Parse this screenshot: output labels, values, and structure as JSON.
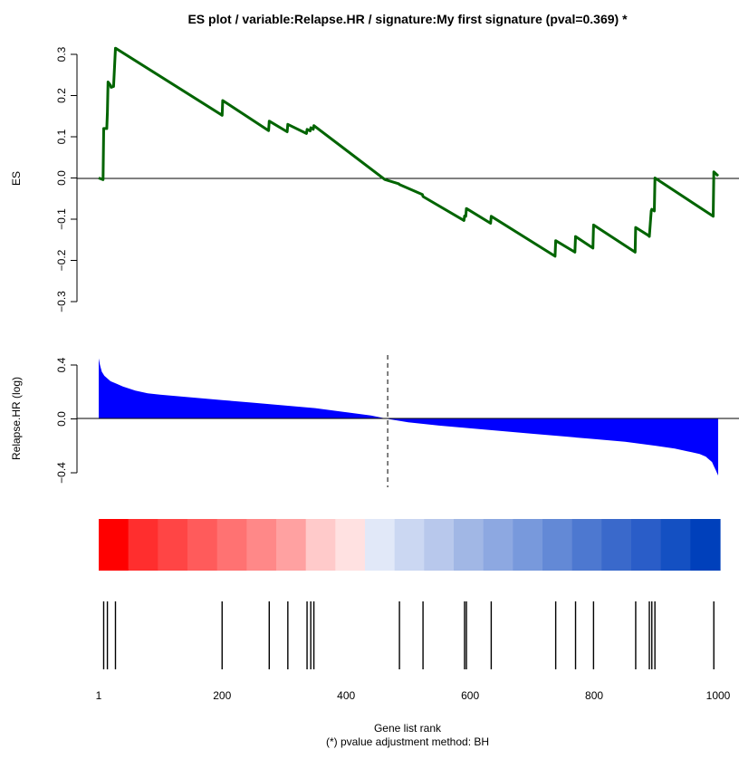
{
  "chart_data": [
    {
      "type": "line",
      "title": "ES  plot /  variable:Relapse.HR / signature:My first signature (pval=0.369) *",
      "xlabel": "",
      "ylabel": "ES",
      "ylim": [
        -0.3,
        0.3
      ],
      "yticks": [
        -0.3,
        -0.2,
        -0.1,
        0.0,
        0.1,
        0.2,
        0.3
      ],
      "ytick_labels": [
        "−0.3",
        "−0.2",
        "−0.1",
        "0.0",
        "0.1",
        "0.2",
        "0.3"
      ],
      "line_color": "#006400",
      "grid": false,
      "series": [
        {
          "x": [
            1,
            8,
            9,
            14,
            15,
            16,
            20,
            21,
            25,
            28,
            200,
            201,
            275,
            276,
            305,
            306,
            336,
            337,
            342,
            343,
            347,
            348,
            462,
            463,
            485,
            486,
            523,
            524,
            590,
            591,
            593,
            594,
            633,
            634,
            737,
            738,
            769,
            770,
            798,
            799,
            866,
            867,
            888,
            889,
            892,
            893,
            897,
            898,
            992,
            993,
            1000
          ],
          "y": [
            0.0,
            -0.004,
            0.12,
            0.12,
            0.16,
            0.233,
            0.225,
            0.22,
            0.222,
            0.315,
            0.152,
            0.188,
            0.115,
            0.138,
            0.112,
            0.13,
            0.108,
            0.118,
            0.114,
            0.122,
            0.118,
            0.127,
            -0.003,
            -0.004,
            -0.014,
            -0.016,
            -0.04,
            -0.045,
            -0.103,
            -0.092,
            -0.093,
            -0.074,
            -0.11,
            -0.093,
            -0.19,
            -0.152,
            -0.18,
            -0.142,
            -0.17,
            -0.114,
            -0.18,
            -0.12,
            -0.14,
            -0.142,
            -0.08,
            -0.076,
            -0.08,
            0.0,
            -0.093,
            0.015,
            0.005
          ]
        }
      ]
    },
    {
      "type": "area",
      "ylabel": "Relapse.HR (log)",
      "ylim": [
        -0.4,
        0.4
      ],
      "yticks": [
        -0.4,
        0.0,
        0.4
      ],
      "ytick_labels": [
        "−0.4",
        "0.0",
        "0.4"
      ],
      "fill_color": "#0000ff",
      "zero_crossing_rank": 467,
      "series": [
        {
          "x": [
            1,
            3,
            6,
            10,
            15,
            20,
            30,
            40,
            60,
            80,
            100,
            150,
            200,
            250,
            300,
            350,
            400,
            440,
            467,
            500,
            550,
            600,
            650,
            700,
            750,
            800,
            850,
            900,
            930,
            950,
            970,
            980,
            985,
            990,
            993,
            996,
            998,
            1000
          ],
          "y": [
            0.45,
            0.4,
            0.35,
            0.32,
            0.3,
            0.28,
            0.26,
            0.24,
            0.21,
            0.19,
            0.18,
            0.16,
            0.14,
            0.12,
            0.1,
            0.08,
            0.05,
            0.025,
            0.0,
            -0.025,
            -0.05,
            -0.07,
            -0.09,
            -0.11,
            -0.13,
            -0.15,
            -0.17,
            -0.2,
            -0.22,
            -0.24,
            -0.26,
            -0.28,
            -0.3,
            -0.32,
            -0.35,
            -0.38,
            -0.4,
            -0.42
          ]
        }
      ]
    },
    {
      "type": "heatmap",
      "colors": [
        "#ff0000",
        "#ff2e2e",
        "#ff4545",
        "#ff5b5b",
        "#ff7272",
        "#ff8888",
        "#ffa1a1",
        "#ffcaca",
        "#ffe1e1",
        "#e1e8f8",
        "#cbd7f2",
        "#b8c8ec",
        "#a1b7e5",
        "#8da8e1",
        "#7899dc",
        "#6389d6",
        "#4d78d0",
        "#3a69cb",
        "#2a5dc8",
        "#1450c2",
        "#0040bb"
      ]
    },
    {
      "type": "scatter",
      "xlabel": "Gene list rank",
      "caption": "(*) pvalue adjustment method: BH",
      "xlim": [
        1,
        1000
      ],
      "xticks": [
        1,
        200,
        400,
        600,
        800,
        1000
      ],
      "xtick_labels": [
        "1",
        "200",
        "400",
        "600",
        "800",
        "1000"
      ],
      "signature_gene_ranks": [
        9,
        15,
        28,
        200,
        276,
        306,
        337,
        343,
        348,
        486,
        524,
        591,
        594,
        634,
        738,
        770,
        799,
        867,
        889,
        893,
        898,
        993
      ]
    }
  ]
}
